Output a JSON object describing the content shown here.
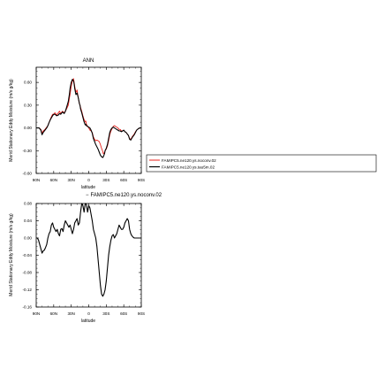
{
  "chart_data": [
    {
      "type": "line",
      "title": "ANN",
      "xlabel": "latitude",
      "ylabel": "Merid Stationary Eddy Moisture (m/s g/kg)",
      "xlim": [
        -90,
        90
      ],
      "ylim": [
        -0.6,
        0.8
      ],
      "xticks": [
        -90,
        -60,
        -30,
        0,
        30,
        60,
        90
      ],
      "xtick_labels": [
        "90N",
        "60N",
        "30N",
        "0",
        "30S",
        "60S",
        "90S"
      ],
      "yticks": [
        -0.6,
        -0.3,
        0.0,
        0.3,
        0.6
      ],
      "ytick_labels": [
        "-0.60",
        "-0.30",
        "0.00",
        "0.30",
        "0.60"
      ],
      "legend_position": "right",
      "series": [
        {
          "name": "FAMIPC5.ne120.ys.noconv.02",
          "color": "#e8231e",
          "x": [
            -90,
            -85,
            -82,
            -80,
            -78,
            -75,
            -72,
            -70,
            -68,
            -65,
            -62,
            -60,
            -58,
            -55,
            -52,
            -50,
            -48,
            -45,
            -42,
            -40,
            -38,
            -35,
            -33,
            -32,
            -30,
            -28,
            -26,
            -25,
            -24,
            -22,
            -20,
            -18,
            -16,
            -15,
            -14,
            -12,
            -10,
            -8,
            -6,
            -5,
            -4,
            -2,
            0,
            2,
            4,
            6,
            8,
            10,
            12,
            14,
            16,
            18,
            20,
            22,
            24,
            25,
            26,
            27,
            28,
            30,
            32,
            34,
            36,
            38,
            40,
            42,
            44,
            46,
            48,
            50,
            52,
            54,
            56,
            58,
            60,
            62,
            64,
            66,
            68,
            70,
            72,
            75,
            78,
            80,
            82,
            85,
            88,
            90
          ],
          "y": [
            0.0,
            0.0,
            -0.02,
            -0.07,
            -0.04,
            -0.02,
            0.01,
            0.03,
            0.07,
            0.13,
            0.18,
            0.18,
            0.2,
            0.17,
            0.2,
            0.22,
            0.19,
            0.22,
            0.2,
            0.22,
            0.25,
            0.3,
            0.4,
            0.44,
            0.55,
            0.62,
            0.65,
            0.6,
            0.55,
            0.47,
            0.5,
            0.4,
            0.32,
            0.3,
            0.27,
            0.22,
            0.16,
            0.11,
            0.08,
            0.09,
            0.05,
            0.02,
            0.0,
            -0.03,
            -0.04,
            -0.06,
            -0.12,
            -0.15,
            -0.17,
            -0.16,
            -0.17,
            -0.18,
            -0.22,
            -0.27,
            -0.31,
            -0.34,
            -0.33,
            -0.34,
            -0.3,
            -0.28,
            -0.24,
            -0.17,
            -0.09,
            -0.04,
            -0.01,
            0.02,
            0.03,
            0.02,
            0.01,
            0.0,
            -0.02,
            -0.02,
            -0.04,
            -0.04,
            -0.03,
            -0.05,
            -0.06,
            -0.08,
            -0.1,
            -0.14,
            -0.15,
            -0.11,
            -0.08,
            -0.05,
            -0.03,
            -0.01,
            0.0,
            0.0
          ]
        },
        {
          "name": "FAMIPC5.ne120.ys.tau5m.02",
          "color": "#000000",
          "x": [
            -90,
            -85,
            -82,
            -80,
            -78,
            -75,
            -72,
            -70,
            -68,
            -65,
            -62,
            -60,
            -58,
            -55,
            -52,
            -50,
            -48,
            -45,
            -42,
            -40,
            -38,
            -35,
            -33,
            -32,
            -30,
            -28,
            -26,
            -25,
            -24,
            -22,
            -20,
            -18,
            -16,
            -15,
            -14,
            -12,
            -10,
            -8,
            -6,
            -5,
            -4,
            -2,
            0,
            2,
            4,
            6,
            8,
            10,
            12,
            14,
            16,
            18,
            20,
            22,
            24,
            25,
            26,
            27,
            28,
            30,
            32,
            34,
            36,
            38,
            40,
            42,
            44,
            46,
            48,
            50,
            52,
            54,
            56,
            58,
            60,
            62,
            64,
            66,
            68,
            70,
            72,
            75,
            78,
            80,
            82,
            85,
            88,
            90
          ],
          "y": [
            0.0,
            0.0,
            -0.03,
            -0.09,
            -0.06,
            -0.03,
            0.0,
            0.03,
            0.07,
            0.12,
            0.16,
            0.18,
            0.18,
            0.16,
            0.17,
            0.19,
            0.18,
            0.21,
            0.19,
            0.22,
            0.27,
            0.35,
            0.45,
            0.52,
            0.6,
            0.64,
            0.62,
            0.58,
            0.52,
            0.44,
            0.46,
            0.4,
            0.32,
            0.3,
            0.25,
            0.2,
            0.14,
            0.08,
            0.04,
            0.05,
            0.03,
            0.02,
            0.01,
            0.0,
            -0.03,
            -0.07,
            -0.14,
            -0.18,
            -0.22,
            -0.25,
            -0.28,
            -0.32,
            -0.36,
            -0.38,
            -0.39,
            -0.38,
            -0.36,
            -0.34,
            -0.3,
            -0.27,
            -0.22,
            -0.14,
            -0.06,
            -0.02,
            0.0,
            0.01,
            0.0,
            -0.01,
            -0.02,
            -0.03,
            -0.04,
            -0.04,
            -0.05,
            -0.04,
            -0.03,
            -0.05,
            -0.06,
            -0.08,
            -0.1,
            -0.15,
            -0.16,
            -0.12,
            -0.09,
            -0.06,
            -0.03,
            -0.01,
            0.0,
            0.0
          ]
        }
      ]
    },
    {
      "type": "line",
      "title": "FAMIPC5.ne120.ys.noconv.02",
      "title_prefix": "−",
      "xlabel": "latitude",
      "ylabel": "Merid Stationary Eddy Moisture (m/s g/kg)",
      "xlim": [
        -90,
        90
      ],
      "ylim": [
        -0.16,
        0.08
      ],
      "xticks": [
        -90,
        -60,
        -30,
        0,
        30,
        60,
        90
      ],
      "xtick_labels": [
        "90N",
        "60N",
        "30N",
        "0",
        "30S",
        "60S",
        "90S"
      ],
      "yticks": [
        -0.16,
        -0.12,
        -0.08,
        -0.04,
        0.0,
        0.04,
        0.08
      ],
      "ytick_labels": [
        "-0.16",
        "-0.12",
        "-0.08",
        "-0.04",
        "0.00",
        "0.04",
        "0.08"
      ],
      "series": [
        {
          "color": "#000000",
          "x": [
            -90,
            -88,
            -86,
            -84,
            -82,
            -80,
            -78,
            -76,
            -74,
            -72,
            -70,
            -68,
            -66,
            -64,
            -62,
            -60,
            -58,
            -56,
            -54,
            -52,
            -50,
            -48,
            -46,
            -44,
            -42,
            -40,
            -38,
            -36,
            -34,
            -32,
            -30,
            -28,
            -26,
            -24,
            -22,
            -20,
            -18,
            -16,
            -14,
            -12,
            -10,
            -8,
            -6,
            -4,
            -2,
            0,
            2,
            4,
            6,
            8,
            10,
            12,
            14,
            16,
            18,
            20,
            22,
            24,
            26,
            28,
            30,
            32,
            34,
            36,
            38,
            40,
            42,
            44,
            46,
            48,
            50,
            52,
            54,
            56,
            58,
            60,
            62,
            64,
            66,
            68,
            70,
            72,
            74,
            76,
            78,
            80,
            82,
            84,
            86,
            88,
            90
          ],
          "y": [
            0.0,
            0.0,
            -0.005,
            -0.015,
            -0.025,
            -0.035,
            -0.03,
            -0.028,
            -0.022,
            -0.015,
            0.0,
            0.01,
            0.015,
            0.03,
            0.035,
            0.025,
            0.02,
            0.015,
            0.02,
            0.01,
            0.005,
            0.02,
            0.022,
            0.015,
            0.03,
            0.04,
            0.035,
            0.03,
            0.025,
            0.03,
            0.02,
            0.01,
            0.02,
            0.035,
            0.04,
            0.045,
            0.03,
            0.035,
            0.06,
            0.08,
            0.075,
            0.06,
            0.08,
            0.078,
            0.06,
            0.075,
            0.07,
            0.055,
            0.04,
            0.02,
            0.01,
            0.0,
            -0.02,
            -0.05,
            -0.08,
            -0.11,
            -0.13,
            -0.135,
            -0.13,
            -0.12,
            -0.1,
            -0.07,
            -0.04,
            -0.02,
            -0.005,
            0.005,
            0.008,
            0.0,
            0.005,
            0.01,
            0.02,
            0.03,
            0.025,
            0.02,
            0.02,
            0.025,
            0.035,
            0.04,
            0.045,
            0.04,
            0.02,
            0.01,
            0.005,
            0.002,
            0.0,
            0.0,
            0.0,
            0.0,
            0.0,
            0.0,
            0.0
          ]
        }
      ]
    }
  ]
}
